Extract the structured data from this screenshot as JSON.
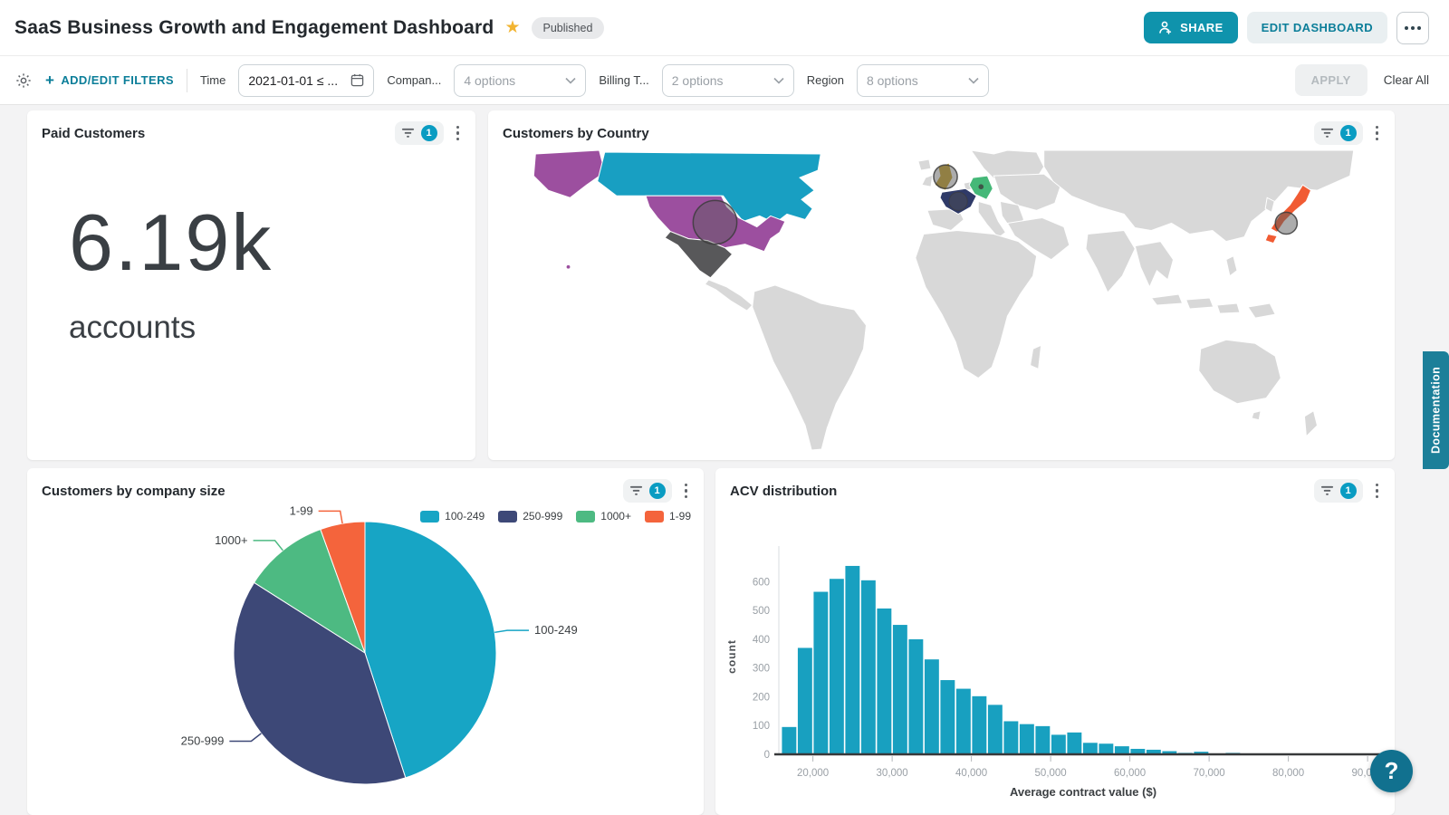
{
  "header": {
    "title": "SaaS Business Growth and Engagement Dashboard",
    "status_badge": "Published",
    "share_label": "SHARE",
    "edit_label": "EDIT DASHBOARD"
  },
  "filter_bar": {
    "add_edit_label": "ADD/EDIT FILTERS",
    "filters": [
      {
        "id": "time",
        "label": "Time",
        "type": "date",
        "value": "2021-01-01 ≤ ..."
      },
      {
        "id": "company",
        "label": "Compan...",
        "type": "select",
        "value": "4 options"
      },
      {
        "id": "billing",
        "label": "Billing T...",
        "type": "select",
        "value": "2 options"
      },
      {
        "id": "region",
        "label": "Region",
        "type": "select",
        "value": "8 options"
      }
    ],
    "apply_label": "APPLY",
    "clear_label": "Clear All"
  },
  "tiles": {
    "paid_customers": {
      "title": "Paid Customers",
      "filter_count": "1",
      "value": "6.19k",
      "unit": "accounts"
    },
    "customers_by_country": {
      "title": "Customers by Country",
      "filter_count": "1"
    },
    "company_size": {
      "title": "Customers by company size",
      "filter_count": "1"
    },
    "acv": {
      "title": "ACV distribution",
      "filter_count": "1"
    }
  },
  "chart_data": [
    {
      "id": "paid_customers",
      "type": "kpi",
      "title": "Paid Customers",
      "value": "6.19k",
      "unit": "accounts"
    },
    {
      "id": "customers_by_country",
      "type": "map",
      "title": "Customers by Country",
      "other_land_color": "#d8d8d8",
      "countries": [
        {
          "name": "United States",
          "color": "#9c4f9f",
          "bubble": true
        },
        {
          "name": "Canada",
          "color": "#189fc2",
          "bubble": false
        },
        {
          "name": "Mexico",
          "color": "#58585a",
          "bubble": false
        },
        {
          "name": "United Kingdom",
          "color": "#c8a42e",
          "bubble": true
        },
        {
          "name": "France",
          "color": "#2f3a68",
          "bubble": true
        },
        {
          "name": "Germany",
          "color": "#45b878",
          "bubble": true
        },
        {
          "name": "Japan",
          "color": "#f15b33",
          "bubble": true
        }
      ]
    },
    {
      "id": "customers_by_company_size",
      "type": "pie",
      "title": "Customers by company size",
      "labels": [
        "100-249",
        "250-999",
        "1000+",
        "1-99"
      ],
      "values_pct": [
        45,
        39,
        10.5,
        5.5
      ],
      "colors": [
        "#17a5c5",
        "#3d4877",
        "#4dba82",
        "#f4643c"
      ],
      "legend_position": "top-right"
    },
    {
      "id": "acv_distribution",
      "type": "bar",
      "title": "ACV distribution",
      "xlabel": "Average contract value ($)",
      "ylabel": "count",
      "bin_start": 16000,
      "bin_width": 2000,
      "values": [
        95,
        370,
        565,
        610,
        655,
        605,
        507,
        450,
        400,
        330,
        258,
        228,
        202,
        172,
        115,
        105,
        98,
        68,
        76,
        40,
        37,
        28,
        19,
        16,
        11,
        5,
        9,
        0,
        5
      ],
      "bar_color": "#18a0c0",
      "xticks": [
        20000,
        30000,
        40000,
        50000,
        60000,
        70000,
        80000,
        90000
      ],
      "yticks": [
        0,
        100,
        200,
        300,
        400,
        500,
        600
      ],
      "xlim": [
        15700,
        92500
      ],
      "ylim": [
        0,
        680
      ],
      "grid": false
    }
  ],
  "side": {
    "documentation_label": "Documentation",
    "help_label": "?"
  }
}
